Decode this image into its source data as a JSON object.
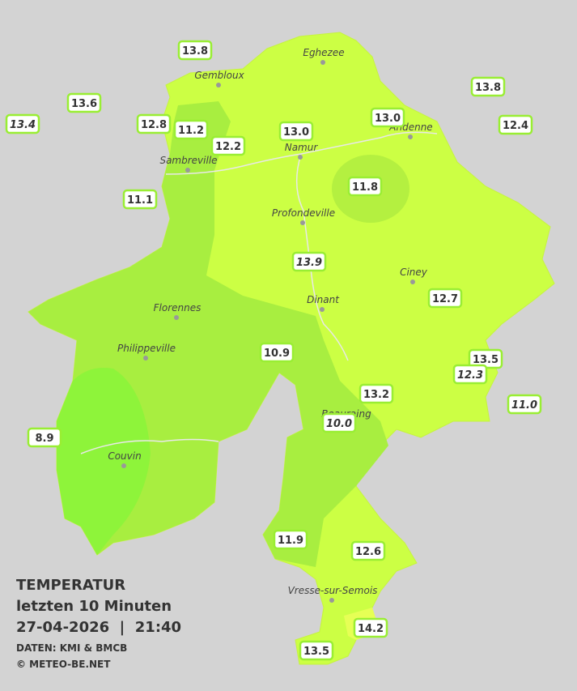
{
  "header": {
    "title": "TEMPERATUR",
    "subtitle": "letzten 10 Minuten",
    "datetime": "27-04-2026  |  21:40",
    "source": "DATEN: KMI & BMCB",
    "copyright": "© METEO-BE.NET"
  },
  "cities": [
    "Eghezee",
    "Gembloux",
    "Andenne",
    "Namur",
    "Sambreville",
    "Profondeville",
    "Ciney",
    "Dinant",
    "Florennes",
    "Philippeville",
    "Beauraing",
    "Couvin",
    "Vresse-sur-Semois"
  ],
  "stations": [
    {
      "value": "13.8"
    },
    {
      "value": "13.6"
    },
    {
      "value": "13.4",
      "italic": true
    },
    {
      "value": "12.8"
    },
    {
      "value": "11.2"
    },
    {
      "value": "12.2"
    },
    {
      "value": "13.0"
    },
    {
      "value": "13.0"
    },
    {
      "value": "13.8"
    },
    {
      "value": "12.4"
    },
    {
      "value": "11.1"
    },
    {
      "value": "11.8"
    },
    {
      "value": "13.9",
      "italic": true
    },
    {
      "value": "12.7"
    },
    {
      "value": "10.9"
    },
    {
      "value": "13.5"
    },
    {
      "value": "12.3",
      "italic": true
    },
    {
      "value": "13.2"
    },
    {
      "value": "11.0",
      "italic": true
    },
    {
      "value": "10.0",
      "italic": true
    },
    {
      "value": "8.9"
    },
    {
      "value": "11.9"
    },
    {
      "value": "12.6"
    },
    {
      "value": "14.2"
    },
    {
      "value": "13.5"
    }
  ]
}
